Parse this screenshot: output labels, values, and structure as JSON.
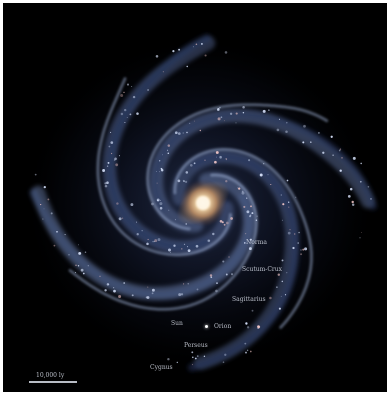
{
  "labels": {
    "norma": "Norma",
    "scutum_crux": "Scutum-Crux",
    "sagittarius": "Sagittarius",
    "sun": "Sun",
    "orion": "Orion",
    "perseus": "Perseus",
    "cygnus": "Cygnus",
    "scale": "10,000 ly"
  },
  "colors": {
    "background": "#000000",
    "core": "#f4d6a6",
    "arms": "#6f86b8",
    "label_text": "#d8dde8"
  }
}
